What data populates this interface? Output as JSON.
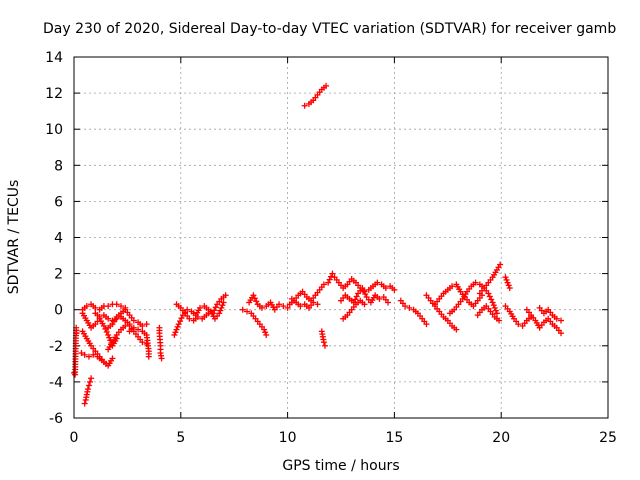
{
  "chart_data": {
    "type": "scatter",
    "title": "Day 230 of 2020, Sidereal Day-to-day VTEC variation (SDTVAR) for receiver gamb",
    "xlabel": "GPS time / hours",
    "ylabel": "SDTVAR / TECUs",
    "xlim": [
      0,
      25
    ],
    "ylim": [
      -6,
      14
    ],
    "xticks": [
      0,
      5,
      10,
      15,
      20,
      25
    ],
    "yticks": [
      -6,
      -4,
      -2,
      0,
      2,
      4,
      6,
      8,
      10,
      12,
      14
    ],
    "grid": true,
    "marker": "plus",
    "color": "#ff0000",
    "series": [
      {
        "name": "SDTVAR",
        "segments": [
          [
            [
              0.0,
              -3.5
            ],
            [
              0.05,
              -3.6
            ],
            [
              0.1,
              -1.0
            ],
            [
              0.12,
              -1.3
            ]
          ],
          [
            [
              0.4,
              -1.2
            ],
            [
              0.6,
              -1.6
            ],
            [
              0.8,
              -2.0
            ],
            [
              1.0,
              -2.3
            ],
            [
              1.2,
              -2.6
            ],
            [
              1.4,
              -2.9
            ],
            [
              1.6,
              -3.1
            ],
            [
              1.8,
              -2.7
            ]
          ],
          [
            [
              0.35,
              -2.4
            ],
            [
              0.5,
              -2.5
            ],
            [
              0.7,
              -2.6
            ],
            [
              0.9,
              -2.5
            ],
            [
              1.1,
              -2.6
            ],
            [
              1.3,
              -2.8
            ],
            [
              1.5,
              -3.0
            ]
          ],
          [
            [
              0.5,
              -5.2
            ],
            [
              0.55,
              -5.0
            ],
            [
              0.6,
              -4.7
            ],
            [
              0.65,
              -4.4
            ],
            [
              0.7,
              -4.2
            ],
            [
              0.75,
              -4.0
            ],
            [
              0.8,
              -3.8
            ]
          ],
          [
            [
              0.4,
              0.0
            ],
            [
              0.6,
              0.2
            ],
            [
              0.8,
              0.3
            ],
            [
              1.0,
              0.1
            ],
            [
              1.2,
              0.0
            ],
            [
              1.4,
              0.2
            ],
            [
              1.6,
              0.2
            ],
            [
              1.8,
              0.3
            ],
            [
              2.0,
              0.3
            ],
            [
              2.2,
              0.2
            ],
            [
              2.4,
              0.1
            ]
          ],
          [
            [
              0.4,
              -0.2
            ],
            [
              0.6,
              -0.6
            ],
            [
              0.8,
              -1.0
            ],
            [
              1.0,
              -0.8
            ],
            [
              1.2,
              -0.5
            ],
            [
              1.4,
              -0.9
            ],
            [
              1.6,
              -1.4
            ],
            [
              1.8,
              -2.0
            ],
            [
              2.0,
              -1.6
            ]
          ],
          [
            [
              1.0,
              -0.2
            ],
            [
              1.2,
              -0.4
            ],
            [
              1.4,
              -0.3
            ],
            [
              1.6,
              -0.5
            ],
            [
              1.8,
              -0.6
            ],
            [
              2.0,
              -0.5
            ],
            [
              2.2,
              -0.4
            ],
            [
              2.4,
              -0.6
            ],
            [
              2.6,
              -0.8
            ]
          ],
          [
            [
              1.6,
              -1.0
            ],
            [
              1.8,
              -0.8
            ],
            [
              2.0,
              -0.4
            ],
            [
              2.2,
              -0.2
            ],
            [
              2.4,
              0.0
            ],
            [
              2.6,
              -0.3
            ],
            [
              2.8,
              -0.6
            ],
            [
              3.0,
              -0.7
            ],
            [
              3.2,
              -0.9
            ],
            [
              3.4,
              -0.8
            ]
          ],
          [
            [
              1.6,
              -2.2
            ],
            [
              1.8,
              -1.8
            ],
            [
              2.0,
              -1.4
            ],
            [
              2.2,
              -1.1
            ],
            [
              2.4,
              -0.9
            ],
            [
              2.6,
              -0.9
            ],
            [
              2.8,
              -1.2
            ],
            [
              3.0,
              -1.5
            ],
            [
              3.2,
              -1.8
            ],
            [
              3.4,
              -1.9
            ]
          ],
          [
            [
              2.6,
              -1.2
            ],
            [
              2.8,
              -1.0
            ],
            [
              3.0,
              -1.1
            ],
            [
              3.2,
              -1.2
            ],
            [
              3.4,
              -1.4
            ],
            [
              3.5,
              -2.3
            ],
            [
              3.5,
              -2.6
            ]
          ],
          [
            [
              4.0,
              -1.0
            ],
            [
              4.0,
              -1.3
            ],
            [
              4.05,
              -2.0
            ],
            [
              4.05,
              -2.4
            ],
            [
              4.1,
              -2.7
            ]
          ],
          [
            [
              4.7,
              -1.4
            ],
            [
              4.9,
              -0.8
            ],
            [
              5.1,
              -0.3
            ],
            [
              5.3,
              0.0
            ],
            [
              5.5,
              -0.1
            ],
            [
              5.7,
              -0.3
            ],
            [
              5.9,
              0.1
            ],
            [
              6.1,
              0.2
            ],
            [
              6.3,
              0.0
            ],
            [
              6.5,
              -0.2
            ],
            [
              6.7,
              0.3
            ],
            [
              6.9,
              0.6
            ],
            [
              7.1,
              0.8
            ]
          ],
          [
            [
              4.8,
              0.3
            ],
            [
              5.0,
              0.1
            ],
            [
              5.2,
              -0.2
            ],
            [
              5.4,
              -0.5
            ],
            [
              5.6,
              -0.6
            ],
            [
              5.8,
              -0.4
            ],
            [
              6.0,
              -0.5
            ],
            [
              6.2,
              -0.3
            ],
            [
              6.4,
              -0.1
            ],
            [
              6.6,
              -0.5
            ],
            [
              6.8,
              -0.2
            ],
            [
              7.0,
              0.4
            ]
          ],
          [
            [
              7.9,
              0.0
            ],
            [
              8.1,
              -0.1
            ],
            [
              8.3,
              -0.2
            ],
            [
              8.5,
              -0.5
            ],
            [
              8.7,
              -0.8
            ],
            [
              8.9,
              -1.1
            ],
            [
              9.0,
              -1.4
            ]
          ],
          [
            [
              8.2,
              0.4
            ],
            [
              8.4,
              0.8
            ],
            [
              8.6,
              0.3
            ],
            [
              8.8,
              0.1
            ],
            [
              9.0,
              0.2
            ],
            [
              9.2,
              0.4
            ],
            [
              9.4,
              0.0
            ],
            [
              9.6,
              0.3
            ],
            [
              9.8,
              0.2
            ],
            [
              10.0,
              0.1
            ]
          ],
          [
            [
              10.1,
              0.3
            ],
            [
              10.3,
              0.5
            ],
            [
              10.5,
              0.8
            ],
            [
              10.7,
              1.0
            ],
            [
              10.9,
              0.7
            ],
            [
              11.1,
              0.5
            ],
            [
              11.3,
              0.8
            ],
            [
              11.5,
              1.1
            ],
            [
              11.7,
              1.4
            ],
            [
              11.9,
              1.5
            ],
            [
              12.1,
              2.0
            ]
          ],
          [
            [
              10.2,
              0.6
            ],
            [
              10.4,
              0.4
            ],
            [
              10.6,
              0.2
            ],
            [
              10.8,
              0.3
            ],
            [
              11.0,
              0.1
            ],
            [
              11.2,
              0.4
            ],
            [
              11.4,
              0.3
            ]
          ],
          [
            [
              11.6,
              -1.2
            ],
            [
              11.65,
              -1.5
            ],
            [
              11.7,
              -1.8
            ],
            [
              11.75,
              -2.0
            ]
          ],
          [
            [
              10.8,
              11.3
            ],
            [
              11.0,
              11.4
            ],
            [
              11.2,
              11.6
            ],
            [
              11.4,
              11.9
            ],
            [
              11.6,
              12.2
            ],
            [
              11.8,
              12.4
            ]
          ],
          [
            [
              12.2,
              1.8
            ],
            [
              12.4,
              1.5
            ],
            [
              12.6,
              1.2
            ],
            [
              12.8,
              1.4
            ],
            [
              13.0,
              1.7
            ],
            [
              13.2,
              1.5
            ],
            [
              13.4,
              1.2
            ],
            [
              13.6,
              1.0
            ],
            [
              13.8,
              1.1
            ],
            [
              14.0,
              1.3
            ],
            [
              14.2,
              1.5
            ],
            [
              14.4,
              1.4
            ],
            [
              14.6,
              1.2
            ],
            [
              14.8,
              1.3
            ],
            [
              15.0,
              1.1
            ]
          ],
          [
            [
              12.5,
              0.5
            ],
            [
              12.7,
              0.8
            ],
            [
              12.9,
              0.6
            ],
            [
              13.1,
              0.4
            ],
            [
              13.3,
              0.9
            ],
            [
              13.5,
              1.2
            ],
            [
              13.7,
              0.7
            ],
            [
              13.9,
              0.4
            ],
            [
              14.1,
              0.8
            ],
            [
              14.3,
              0.6
            ],
            [
              14.5,
              0.7
            ],
            [
              14.7,
              0.4
            ]
          ],
          [
            [
              12.6,
              -0.5
            ],
            [
              12.8,
              -0.3
            ],
            [
              13.0,
              0.0
            ],
            [
              13.2,
              0.3
            ],
            [
              13.4,
              0.5
            ],
            [
              13.6,
              0.3
            ]
          ],
          [
            [
              15.3,
              0.5
            ],
            [
              15.5,
              0.2
            ],
            [
              15.7,
              0.1
            ],
            [
              15.9,
              0.0
            ],
            [
              16.1,
              -0.2
            ],
            [
              16.3,
              -0.5
            ],
            [
              16.5,
              -0.8
            ]
          ],
          [
            [
              16.5,
              0.8
            ],
            [
              16.7,
              0.5
            ],
            [
              16.9,
              0.2
            ],
            [
              17.1,
              -0.1
            ],
            [
              17.3,
              -0.4
            ],
            [
              17.5,
              -0.6
            ],
            [
              17.7,
              -0.9
            ],
            [
              17.9,
              -1.1
            ]
          ],
          [
            [
              16.9,
              0.3
            ],
            [
              17.1,
              0.6
            ],
            [
              17.3,
              0.9
            ],
            [
              17.5,
              1.1
            ],
            [
              17.7,
              1.3
            ],
            [
              17.9,
              1.4
            ],
            [
              18.1,
              1.0
            ],
            [
              18.3,
              0.7
            ],
            [
              18.5,
              0.4
            ],
            [
              18.7,
              0.2
            ],
            [
              18.9,
              0.5
            ],
            [
              19.1,
              0.8
            ]
          ],
          [
            [
              17.6,
              -0.2
            ],
            [
              17.8,
              0.0
            ],
            [
              18.0,
              0.3
            ],
            [
              18.2,
              0.6
            ],
            [
              18.4,
              1.0
            ],
            [
              18.6,
              1.3
            ],
            [
              18.8,
              1.5
            ],
            [
              19.0,
              1.4
            ],
            [
              19.2,
              1.2
            ],
            [
              19.4,
              0.9
            ],
            [
              19.6,
              0.4
            ],
            [
              19.8,
              -0.2
            ]
          ],
          [
            [
              19.0,
              0.9
            ],
            [
              19.2,
              1.2
            ],
            [
              19.4,
              1.5
            ],
            [
              19.6,
              1.8
            ],
            [
              19.8,
              2.2
            ],
            [
              19.95,
              2.5
            ]
          ],
          [
            [
              18.9,
              -0.3
            ],
            [
              19.1,
              0.0
            ],
            [
              19.3,
              0.2
            ],
            [
              19.5,
              -0.1
            ],
            [
              19.7,
              -0.4
            ],
            [
              19.9,
              -0.6
            ]
          ],
          [
            [
              20.2,
              1.8
            ],
            [
              20.3,
              1.5
            ],
            [
              20.4,
              1.2
            ]
          ],
          [
            [
              20.2,
              0.2
            ],
            [
              20.4,
              -0.1
            ],
            [
              20.6,
              -0.5
            ],
            [
              20.8,
              -0.8
            ],
            [
              21.0,
              -0.9
            ],
            [
              21.2,
              -0.6
            ],
            [
              21.4,
              -0.4
            ]
          ],
          [
            [
              21.2,
              0.0
            ],
            [
              21.4,
              -0.3
            ],
            [
              21.6,
              -0.6
            ],
            [
              21.8,
              -1.0
            ],
            [
              22.0,
              -0.7
            ],
            [
              22.2,
              -0.5
            ],
            [
              22.4,
              -0.8
            ],
            [
              22.6,
              -1.0
            ],
            [
              22.8,
              -1.3
            ]
          ],
          [
            [
              21.8,
              0.1
            ],
            [
              22.0,
              -0.2
            ],
            [
              22.2,
              0.0
            ],
            [
              22.4,
              -0.3
            ],
            [
              22.6,
              -0.5
            ],
            [
              22.8,
              -0.6
            ]
          ]
        ]
      }
    ]
  }
}
